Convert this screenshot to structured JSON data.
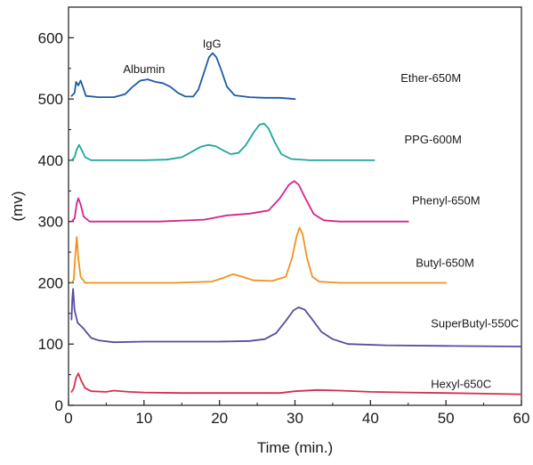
{
  "chart_data": {
    "type": "line",
    "xlabel": "Time (min.)",
    "ylabel": "(mv)",
    "xlim": [
      0,
      60
    ],
    "ylim": [
      0,
      650
    ],
    "xticks": [
      0,
      10,
      20,
      30,
      40,
      50,
      60
    ],
    "yticks": [
      0,
      100,
      200,
      300,
      400,
      500,
      600
    ],
    "grid": false,
    "annotations": [
      {
        "text": "Albumin",
        "x": 10,
        "y": 548
      },
      {
        "text": "IgG",
        "x": 19,
        "y": 590
      }
    ],
    "series": [
      {
        "name": "Ether-650M",
        "color": "#1f5aa6",
        "label_at": [
          44,
          534
        ],
        "points": [
          [
            0.4,
            505
          ],
          [
            0.8,
            510
          ],
          [
            1.0,
            528
          ],
          [
            1.3,
            522
          ],
          [
            1.6,
            530
          ],
          [
            1.9,
            520
          ],
          [
            2.3,
            505
          ],
          [
            4,
            503
          ],
          [
            6,
            503
          ],
          [
            7.5,
            508
          ],
          [
            8.5,
            520
          ],
          [
            9.5,
            530
          ],
          [
            10.5,
            532
          ],
          [
            11.5,
            528
          ],
          [
            12.5,
            526
          ],
          [
            13.5,
            520
          ],
          [
            14.5,
            510
          ],
          [
            15.5,
            504
          ],
          [
            16.5,
            504
          ],
          [
            17.2,
            515
          ],
          [
            18,
            545
          ],
          [
            18.6,
            568
          ],
          [
            19.1,
            575
          ],
          [
            19.6,
            568
          ],
          [
            20.3,
            545
          ],
          [
            21,
            520
          ],
          [
            22,
            506
          ],
          [
            24,
            503
          ],
          [
            26,
            502
          ],
          [
            28,
            502
          ],
          [
            30,
            500
          ]
        ]
      },
      {
        "name": "PPG-600M",
        "color": "#1aa89a",
        "label_at": [
          44.5,
          433
        ],
        "points": [
          [
            0.4,
            400
          ],
          [
            0.8,
            405
          ],
          [
            1.1,
            418
          ],
          [
            1.4,
            425
          ],
          [
            1.7,
            418
          ],
          [
            2.2,
            405
          ],
          [
            3,
            400
          ],
          [
            6,
            400
          ],
          [
            10,
            400
          ],
          [
            13,
            401
          ],
          [
            15,
            405
          ],
          [
            16.5,
            415
          ],
          [
            17.5,
            422
          ],
          [
            18.5,
            425
          ],
          [
            19.5,
            423
          ],
          [
            20.5,
            416
          ],
          [
            21.5,
            410
          ],
          [
            22.5,
            412
          ],
          [
            23.5,
            425
          ],
          [
            24.5,
            445
          ],
          [
            25.3,
            458
          ],
          [
            25.9,
            460
          ],
          [
            26.5,
            452
          ],
          [
            27.3,
            430
          ],
          [
            28.2,
            410
          ],
          [
            29.5,
            402
          ],
          [
            32,
            400
          ],
          [
            36,
            400
          ],
          [
            40.5,
            400
          ]
        ]
      },
      {
        "name": "Phenyl-650M",
        "color": "#d4258a",
        "label_at": [
          45.5,
          334
        ],
        "points": [
          [
            0.4,
            300
          ],
          [
            0.8,
            305
          ],
          [
            1.1,
            330
          ],
          [
            1.3,
            338
          ],
          [
            1.6,
            328
          ],
          [
            2,
            308
          ],
          [
            2.8,
            300
          ],
          [
            6,
            300
          ],
          [
            12,
            300
          ],
          [
            18,
            303
          ],
          [
            21,
            310
          ],
          [
            24,
            313
          ],
          [
            26.5,
            318
          ],
          [
            28,
            338
          ],
          [
            29.2,
            360
          ],
          [
            29.9,
            366
          ],
          [
            30.5,
            360
          ],
          [
            31.5,
            335
          ],
          [
            32.5,
            312
          ],
          [
            33.8,
            302
          ],
          [
            36,
            300
          ],
          [
            40,
            300
          ],
          [
            45,
            300
          ]
        ]
      },
      {
        "name": "Butyl-650M",
        "color": "#f0911f",
        "label_at": [
          46,
          232
        ],
        "points": [
          [
            0.4,
            200
          ],
          [
            0.7,
            205
          ],
          [
            0.9,
            245
          ],
          [
            1.1,
            275
          ],
          [
            1.3,
            240
          ],
          [
            1.6,
            210
          ],
          [
            2.2,
            200
          ],
          [
            6,
            200
          ],
          [
            14,
            200
          ],
          [
            19,
            202
          ],
          [
            20.5,
            208
          ],
          [
            21.8,
            214
          ],
          [
            23,
            210
          ],
          [
            24.5,
            204
          ],
          [
            27,
            203
          ],
          [
            28.8,
            210
          ],
          [
            29.6,
            240
          ],
          [
            30.2,
            275
          ],
          [
            30.6,
            290
          ],
          [
            31,
            280
          ],
          [
            31.6,
            240
          ],
          [
            32.3,
            210
          ],
          [
            33.2,
            202
          ],
          [
            36,
            200
          ],
          [
            44,
            200
          ],
          [
            50,
            200
          ]
        ]
      },
      {
        "name": "SuperButyl-550C",
        "color": "#574c9e",
        "label_at": [
          48,
          133
        ],
        "points": [
          [
            0.4,
            140
          ],
          [
            0.5,
            172
          ],
          [
            0.6,
            190
          ],
          [
            0.8,
            155
          ],
          [
            1.2,
            135
          ],
          [
            2,
            125
          ],
          [
            3,
            110
          ],
          [
            4,
            106
          ],
          [
            6,
            103
          ],
          [
            10,
            104
          ],
          [
            15,
            104
          ],
          [
            20,
            104
          ],
          [
            24,
            105
          ],
          [
            26,
            108
          ],
          [
            27.5,
            118
          ],
          [
            28.8,
            138
          ],
          [
            29.8,
            155
          ],
          [
            30.5,
            160
          ],
          [
            31.3,
            156
          ],
          [
            32.3,
            140
          ],
          [
            33.5,
            120
          ],
          [
            35,
            108
          ],
          [
            37,
            100
          ],
          [
            42,
            98
          ],
          [
            50,
            97
          ],
          [
            60,
            96
          ]
        ]
      },
      {
        "name": "Hexyl-650C",
        "color": "#d42f4a",
        "label_at": [
          48,
          34
        ],
        "points": [
          [
            0.4,
            22
          ],
          [
            0.7,
            28
          ],
          [
            1.0,
            45
          ],
          [
            1.3,
            52
          ],
          [
            1.7,
            40
          ],
          [
            2.2,
            28
          ],
          [
            3,
            23
          ],
          [
            5,
            22
          ],
          [
            6,
            24
          ],
          [
            8,
            22
          ],
          [
            10,
            21
          ],
          [
            15,
            20
          ],
          [
            20,
            20
          ],
          [
            25,
            20
          ],
          [
            28,
            20
          ],
          [
            30,
            23
          ],
          [
            33,
            25
          ],
          [
            36,
            24
          ],
          [
            40,
            22
          ],
          [
            45,
            21
          ],
          [
            50,
            20
          ],
          [
            55,
            19
          ],
          [
            60,
            18
          ]
        ]
      }
    ]
  }
}
